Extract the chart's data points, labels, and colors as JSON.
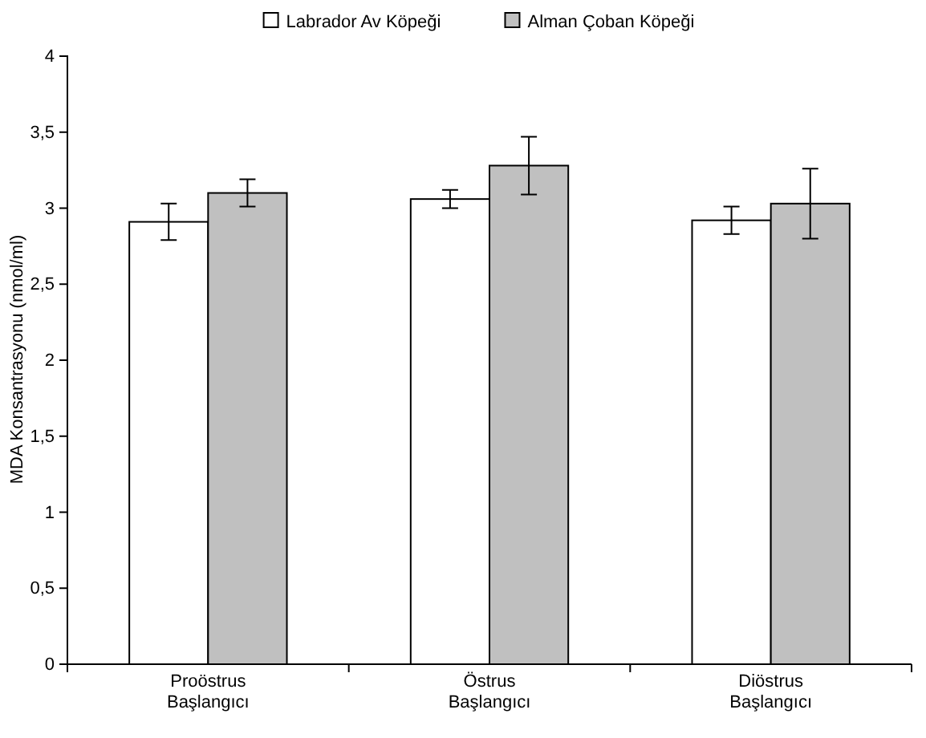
{
  "chart_data": {
    "type": "bar",
    "ylabel": "MDA Konsantrasyonu (nmol/ml)",
    "categories": [
      "Proöstrus\nBaşlangıcı",
      "Östrus\nBaşlangıcı",
      "Diöstrus\nBaşlangıcı"
    ],
    "series": [
      {
        "name": "Labrador Av Köpeği",
        "color": "#ffffff",
        "values": [
          2.91,
          3.06,
          2.92
        ],
        "errors": [
          0.12,
          0.06,
          0.09
        ]
      },
      {
        "name": "Alman Çoban Köpeği",
        "color": "#c0c0c0",
        "values": [
          3.1,
          3.28,
          3.03
        ],
        "errors": [
          0.09,
          0.19,
          0.23
        ]
      }
    ],
    "ylim": [
      0,
      4
    ],
    "yticks": [
      0,
      {
        "value": 0.5,
        "label": "0,5"
      },
      1,
      {
        "value": 1.5,
        "label": "1,5"
      },
      2,
      {
        "value": 2.5,
        "label": "2,5"
      },
      3,
      {
        "value": 3.5,
        "label": "3,5"
      },
      4
    ],
    "grid": false,
    "legend": "top"
  }
}
